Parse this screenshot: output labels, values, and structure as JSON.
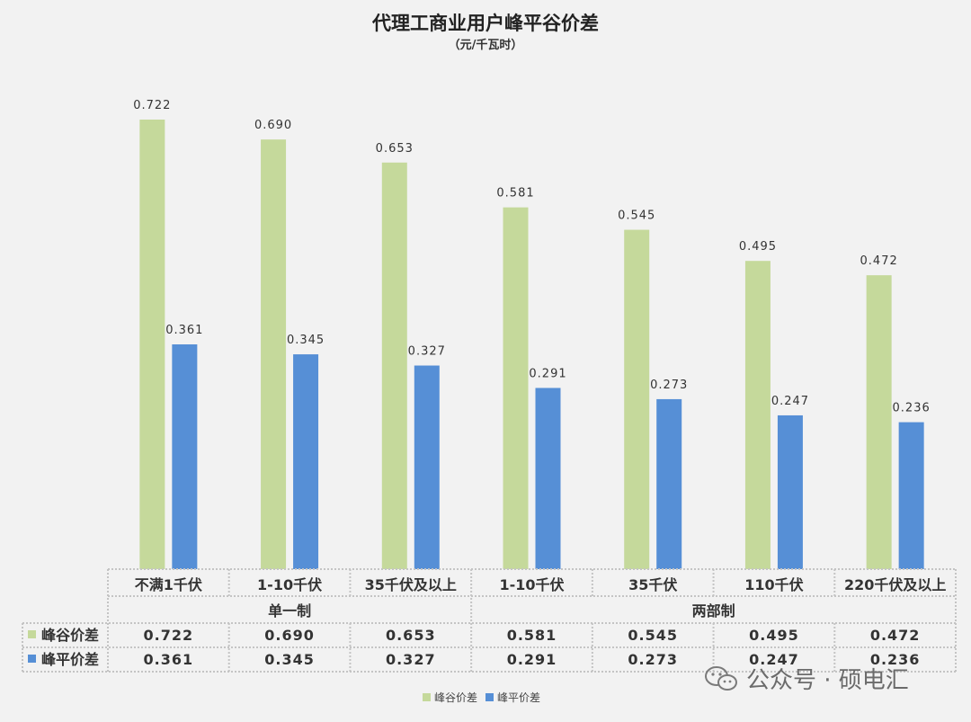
{
  "chart_data": {
    "type": "bar",
    "title": "代理工商业用户峰平谷价差",
    "subtitle": "（元/千瓦时）",
    "categories": [
      "不满1千伏",
      "1-10千伏",
      "35千伏及以上",
      "1-10千伏",
      "35千伏",
      "110千伏",
      "220千伏及以上"
    ],
    "groups": [
      {
        "label": "单一制",
        "span": 3
      },
      {
        "label": "两部制",
        "span": 4
      }
    ],
    "series": [
      {
        "name": "峰谷价差",
        "color": "#c5d99b",
        "values": [
          0.722,
          0.69,
          0.653,
          0.581,
          0.545,
          0.495,
          0.472
        ],
        "labels": [
          "0.722",
          "0.690",
          "0.653",
          "0.581",
          "0.545",
          "0.495",
          "0.472"
        ]
      },
      {
        "name": "峰平价差",
        "color": "#568fd6",
        "values": [
          0.361,
          0.345,
          0.327,
          0.291,
          0.273,
          0.247,
          0.236
        ],
        "labels": [
          "0.361",
          "0.345",
          "0.327",
          "0.291",
          "0.273",
          "0.247",
          "0.236"
        ]
      }
    ],
    "ylim": [
      0,
      0.8
    ],
    "grid": false,
    "legend_position": "bottom"
  },
  "watermark": {
    "text": "公众号 · 硕电汇",
    "icon": "wechat-icon"
  }
}
